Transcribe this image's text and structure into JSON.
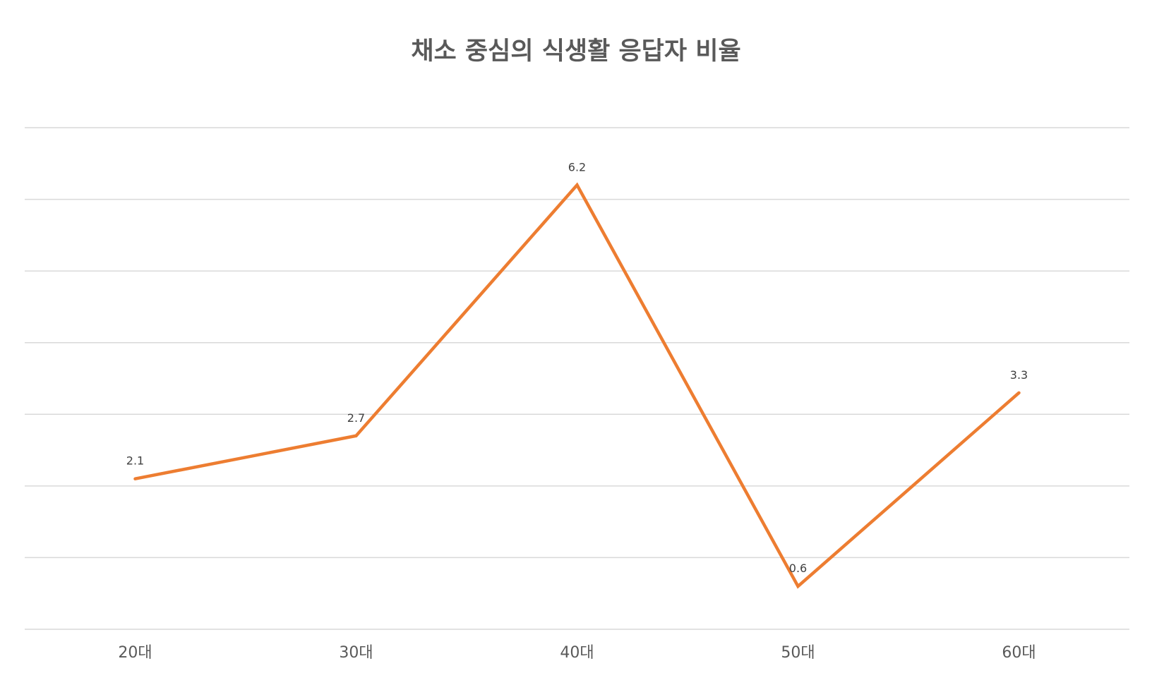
{
  "chart_data": {
    "type": "line",
    "title": "채소 중심의 식생활 응답자 비율",
    "xlabel": "",
    "ylabel": "",
    "categories": [
      "20대",
      "30대",
      "40대",
      "50대",
      "60대"
    ],
    "series": [
      {
        "values": [
          2.1,
          2.7,
          6.2,
          0.6,
          3.3
        ],
        "data_labels": [
          "2.1",
          "2.7",
          "6.2",
          "0.6",
          "3.3"
        ],
        "color": "#ED7D31"
      }
    ],
    "ylim": [
      0,
      7
    ],
    "ytick_step": 1,
    "show_y_tick_labels": false,
    "grid": true,
    "legend": "none"
  }
}
